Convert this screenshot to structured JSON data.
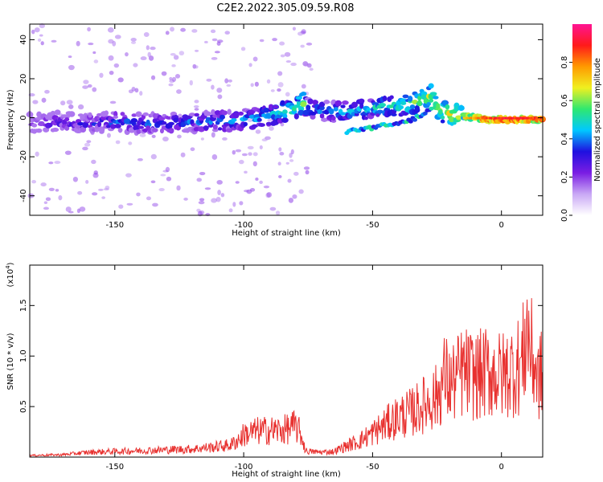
{
  "title": "C2E2.2022.305.09.59.R08",
  "colors": {
    "snr_line": "#e8312f",
    "spectrogram_cmap": [
      "#ffffff",
      "#c9a8f5",
      "#7a1de3",
      "#1f10e0",
      "#00c8ff",
      "#2fe870",
      "#f0f020",
      "#ff9a00",
      "#ff1a1a",
      "#ff1493"
    ]
  },
  "chart_data": [
    {
      "type": "heatmap",
      "panel": "spectrogram",
      "xlabel": "Height of straight line (km)",
      "ylabel": "Frequency (Hz)",
      "xlim": [
        -183,
        16
      ],
      "ylim": [
        -50,
        48
      ],
      "xticks": [
        -150,
        -100,
        -50,
        0
      ],
      "xtick_labels": [
        "-150",
        "-100",
        "-50",
        "0"
      ],
      "yticks": [
        -40,
        -20,
        0,
        20,
        40
      ],
      "ytick_labels": [
        "-40",
        "-20",
        "0",
        "20",
        "40"
      ],
      "grid": false,
      "colorbar": {
        "label": "Normalized spectral amplitude",
        "range": [
          0,
          1
        ],
        "ticks": [
          0.0,
          0.2,
          0.4,
          0.6,
          0.8
        ],
        "tick_labels": [
          "0.0",
          "0.2",
          "0.4",
          "0.6",
          "0.8"
        ]
      },
      "ridge_x": [
        -183,
        -170,
        -160,
        -150,
        -140,
        -130,
        -120,
        -110,
        -100,
        -95,
        -90,
        -85,
        -80,
        -77,
        -75,
        -70,
        -65,
        -60,
        -55,
        -50,
        -45,
        -40,
        -35,
        -30,
        -27,
        -25,
        -20,
        -15,
        -10,
        -5,
        0,
        5,
        10,
        14
      ],
      "ridge_y": [
        -3,
        -2,
        -3,
        -2,
        -3,
        -3,
        -2,
        -2,
        -1,
        0,
        1,
        3,
        5,
        8,
        5,
        4,
        3,
        3,
        4,
        5,
        6,
        6,
        7,
        10,
        12,
        4,
        2,
        1,
        0,
        -1,
        -1,
        -1,
        -1,
        -1
      ],
      "lower_branch_x": [
        -60,
        -55,
        -50,
        -45,
        -40,
        -35,
        -30,
        -27
      ],
      "lower_branch_y": [
        -7,
        -6,
        -5,
        -4,
        -3,
        -1,
        2,
        4
      ],
      "ridge_amplitude": [
        0.25,
        0.3,
        0.3,
        0.35,
        0.35,
        0.35,
        0.35,
        0.4,
        0.4,
        0.45,
        0.45,
        0.5,
        0.55,
        0.6,
        0.4,
        0.4,
        0.4,
        0.45,
        0.45,
        0.45,
        0.5,
        0.5,
        0.55,
        0.6,
        0.65,
        0.6,
        0.65,
        0.7,
        0.8,
        0.85,
        0.9,
        0.9,
        0.9,
        0.85
      ]
    },
    {
      "type": "line",
      "panel": "snr",
      "xlabel": "Height of straight line (km)",
      "ylabel": "SNR (10 * v/v)",
      "multiplier_label": "(x10",
      "multiplier_exp": "4",
      "xlim": [
        -183,
        16
      ],
      "ylim": [
        0,
        19000
      ],
      "xticks": [
        -150,
        -100,
        -50,
        0
      ],
      "xtick_labels": [
        "-150",
        "-100",
        "-50",
        "0"
      ],
      "yticks": [
        5000,
        10000,
        15000
      ],
      "ytick_labels": [
        "0.5",
        "1.0",
        "1.5"
      ],
      "grid": false,
      "series": [
        {
          "x": [
            -183,
            -170,
            -160,
            -150,
            -140,
            -130,
            -120,
            -110,
            -105,
            -101,
            -100,
            -95,
            -90,
            -85,
            -80,
            -78,
            -76,
            -75,
            -70,
            -65,
            -60,
            -55,
            -50,
            -45,
            -40,
            -35,
            -30,
            -25,
            -22,
            -20,
            -18,
            -15,
            -10,
            -5,
            0,
            5,
            8,
            10,
            12,
            13,
            14,
            16
          ],
          "y": [
            200,
            300,
            600,
            700,
            800,
            900,
            1000,
            1300,
            1500,
            2400,
            2800,
            3200,
            3300,
            3300,
            3800,
            3000,
            800,
            700,
            600,
            700,
            1400,
            2000,
            3000,
            4000,
            5000,
            5500,
            6500,
            7500,
            10000,
            9000,
            9500,
            10500,
            10000,
            10500,
            10000,
            11000,
            11500,
            16000,
            12000,
            11500,
            9500,
            10500
          ]
        }
      ]
    }
  ]
}
